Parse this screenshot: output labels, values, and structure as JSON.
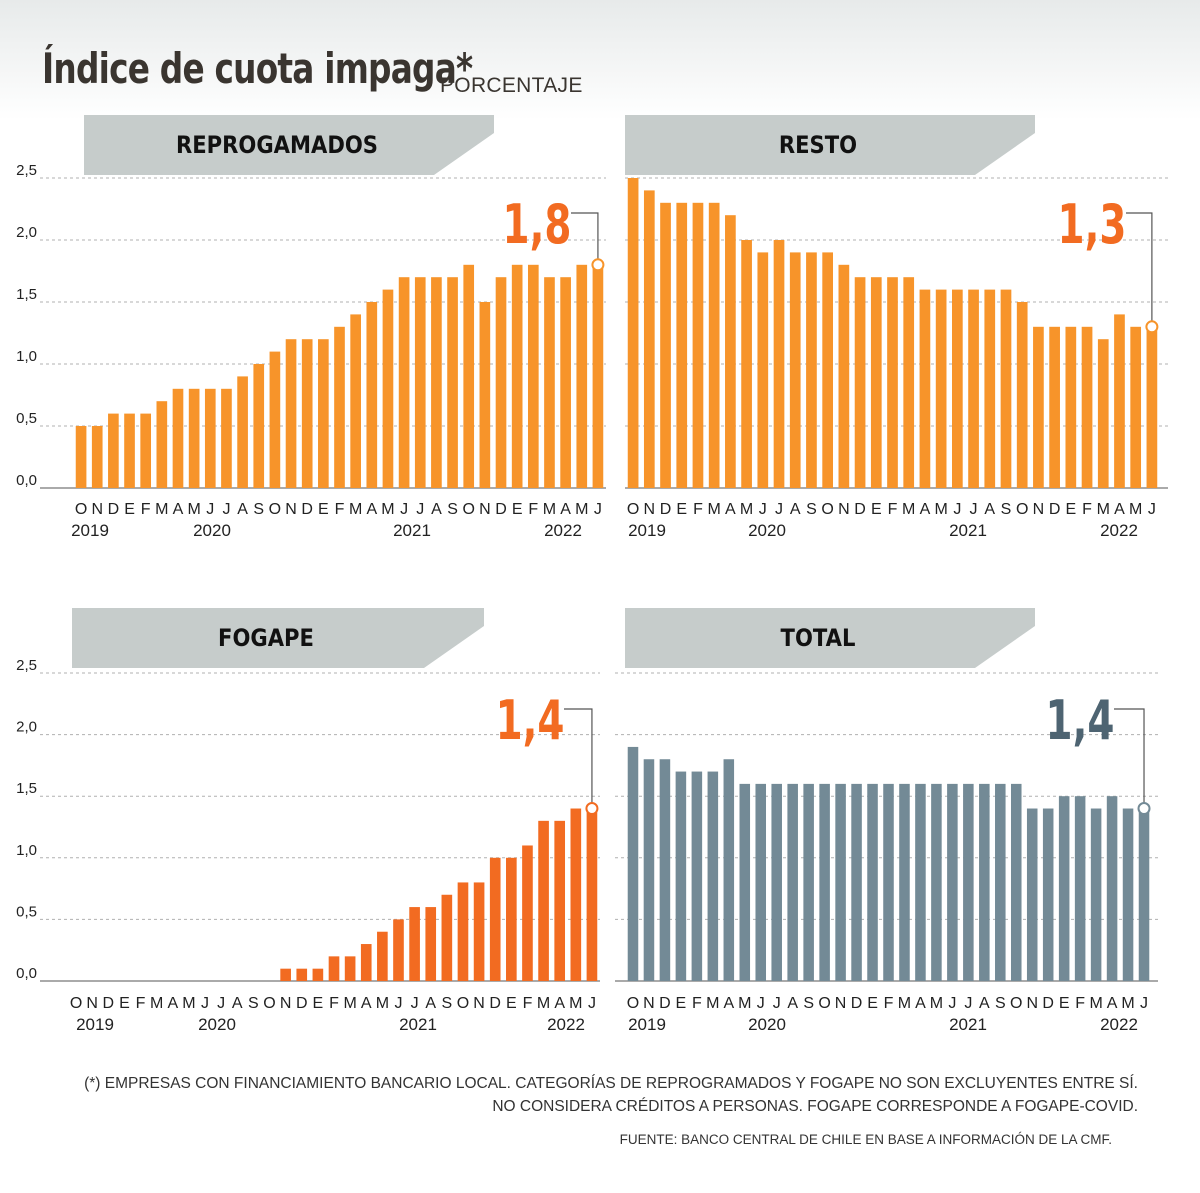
{
  "title": "Índice de cuota impaga*",
  "subtitle": "PORCENTAJE",
  "notes": [
    "(*) EMPRESAS CON FINANCIAMIENTO BANCARIO LOCAL. CATEGORÍAS DE REPROGRAMADOS Y FOGAPE NO SON EXCLUYENTES ENTRE SÍ.",
    "NO CONSIDERA CRÉDITOS A PERSONAS. FOGAPE CORRESPONDE A FOGAPE-COVID."
  ],
  "source": "FUENTE: BANCO CENTRAL DE CHILE EN BASE A INFORMACIÓN DE LA CMF.",
  "colors": {
    "reprogramados": "#f7942a",
    "resto": "#f7942a",
    "fogape": "#f26b21",
    "total": "#738a96",
    "label_orange": "#f26b21",
    "label_gray": "#4e6472",
    "header_bg": "#c6cccb",
    "grid": "#b0b0b0"
  },
  "chart_data": [
    {
      "type": "bar",
      "title": "REPROGAMADOS",
      "month_labels": [
        "O",
        "N",
        "D",
        "E",
        "F",
        "M",
        "A",
        "M",
        "J",
        "J",
        "A",
        "S",
        "O",
        "N",
        "D",
        "E",
        "F",
        "M",
        "A",
        "M",
        "J",
        "J",
        "A",
        "S",
        "O",
        "N",
        "D",
        "E",
        "F",
        "M",
        "A",
        "M",
        "J"
      ],
      "year_labels": [
        "2019",
        "2020",
        "2021",
        "2022"
      ],
      "yticks": [
        "0,0",
        "0,5",
        "1,0",
        "1,5",
        "2,0",
        "2,5"
      ],
      "ylim": [
        0,
        2.5
      ],
      "values": [
        0.5,
        0.5,
        0.6,
        0.6,
        0.6,
        0.7,
        0.8,
        0.8,
        0.8,
        0.8,
        0.9,
        1.0,
        1.1,
        1.2,
        1.2,
        1.2,
        1.3,
        1.4,
        1.5,
        1.6,
        1.7,
        1.7,
        1.7,
        1.7,
        1.8,
        1.5,
        1.7,
        1.8,
        1.8,
        1.7,
        1.7,
        1.8,
        1.8
      ],
      "last_value_label": "1,8",
      "color_key": "reprogramados",
      "label_color_key": "label_orange"
    },
    {
      "type": "bar",
      "title": "RESTO",
      "month_labels": [
        "O",
        "N",
        "D",
        "E",
        "F",
        "M",
        "A",
        "M",
        "J",
        "J",
        "A",
        "S",
        "O",
        "N",
        "D",
        "E",
        "F",
        "M",
        "A",
        "M",
        "J",
        "J",
        "A",
        "S",
        "O",
        "N",
        "D",
        "E",
        "F",
        "M",
        "A",
        "M",
        "J"
      ],
      "year_labels": [
        "2019",
        "2020",
        "2021",
        "2022"
      ],
      "yticks": [],
      "ylim": [
        0,
        2.5
      ],
      "values": [
        2.5,
        2.4,
        2.3,
        2.3,
        2.3,
        2.3,
        2.2,
        2.0,
        1.9,
        2.0,
        1.9,
        1.9,
        1.9,
        1.8,
        1.7,
        1.7,
        1.7,
        1.7,
        1.6,
        1.6,
        1.6,
        1.6,
        1.6,
        1.6,
        1.5,
        1.3,
        1.3,
        1.3,
        1.3,
        1.2,
        1.4,
        1.3,
        1.3
      ],
      "last_value_label": "1,3",
      "color_key": "resto",
      "label_color_key": "label_orange"
    },
    {
      "type": "bar",
      "title": "FOGAPE",
      "month_labels": [
        "O",
        "N",
        "D",
        "E",
        "F",
        "M",
        "A",
        "M",
        "J",
        "J",
        "A",
        "S",
        "O",
        "N",
        "D",
        "E",
        "F",
        "M",
        "A",
        "M",
        "J",
        "J",
        "A",
        "S",
        "O",
        "N",
        "D",
        "E",
        "F",
        "M",
        "A",
        "M",
        "J"
      ],
      "year_labels": [
        "2019",
        "2020",
        "2021",
        "2022"
      ],
      "yticks": [
        "0,0",
        "0,5",
        "1,0",
        "1,5",
        "2,0",
        "2,5"
      ],
      "ylim": [
        0,
        2.5
      ],
      "values": [
        0,
        0,
        0,
        0,
        0,
        0,
        0,
        0,
        0,
        0,
        0,
        0,
        0,
        0.1,
        0.1,
        0.1,
        0.2,
        0.2,
        0.3,
        0.4,
        0.5,
        0.6,
        0.6,
        0.7,
        0.8,
        0.8,
        1.0,
        1.0,
        1.1,
        1.3,
        1.3,
        1.4,
        1.4
      ],
      "last_value_label": "1,4",
      "color_key": "fogape",
      "label_color_key": "label_orange"
    },
    {
      "type": "bar",
      "title": "TOTAL",
      "month_labels": [
        "O",
        "N",
        "D",
        "E",
        "F",
        "M",
        "A",
        "M",
        "J",
        "J",
        "A",
        "S",
        "O",
        "N",
        "D",
        "E",
        "F",
        "M",
        "A",
        "M",
        "J",
        "J",
        "A",
        "S",
        "O",
        "N",
        "D",
        "E",
        "F",
        "M",
        "A",
        "M",
        "J"
      ],
      "year_labels": [
        "2019",
        "2020",
        "2021",
        "2022"
      ],
      "yticks": [],
      "ylim": [
        0,
        2.5
      ],
      "values": [
        1.9,
        1.8,
        1.8,
        1.7,
        1.7,
        1.7,
        1.8,
        1.6,
        1.6,
        1.6,
        1.6,
        1.6,
        1.6,
        1.6,
        1.6,
        1.6,
        1.6,
        1.6,
        1.6,
        1.6,
        1.6,
        1.6,
        1.6,
        1.6,
        1.6,
        1.4,
        1.4,
        1.5,
        1.5,
        1.4,
        1.5,
        1.4,
        1.4
      ],
      "last_value_label": "1,4",
      "color_key": "total",
      "label_color_key": "label_gray"
    }
  ]
}
